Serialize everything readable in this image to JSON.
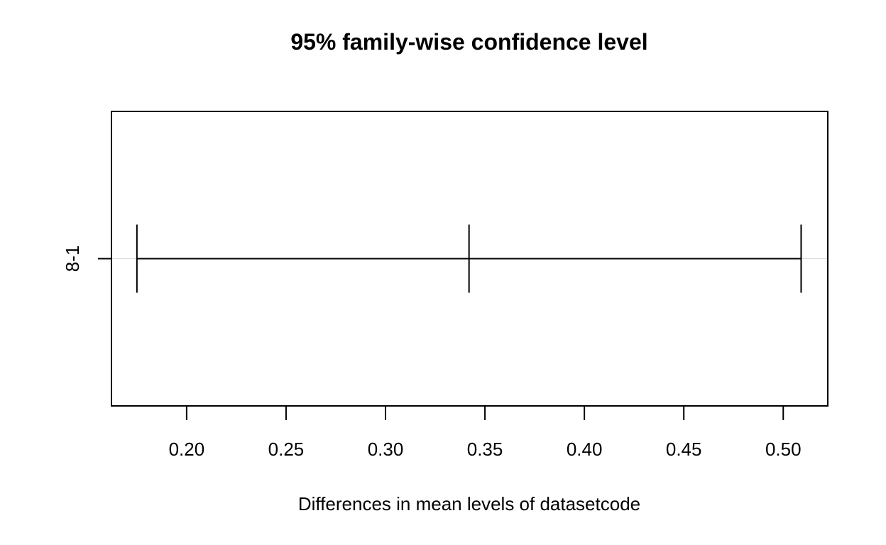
{
  "chart_data": {
    "type": "errorbar",
    "title": "95% family-wise confidence level",
    "xlabel": "Differences in mean levels of datasetcode",
    "ylabel": "",
    "xlim": [
      0.1622,
      0.5224
    ],
    "x_ticks": [
      0.2,
      0.25,
      0.3,
      0.35,
      0.4,
      0.45,
      0.5
    ],
    "x_tick_labels": [
      "0.20",
      "0.25",
      "0.30",
      "0.35",
      "0.40",
      "0.45",
      "0.50"
    ],
    "comparisons": [
      {
        "label": "8-1",
        "lwr": 0.175,
        "diff": 0.342,
        "upr": 0.509
      }
    ],
    "grid": "horizontal at comparison rows",
    "legend": "none"
  }
}
